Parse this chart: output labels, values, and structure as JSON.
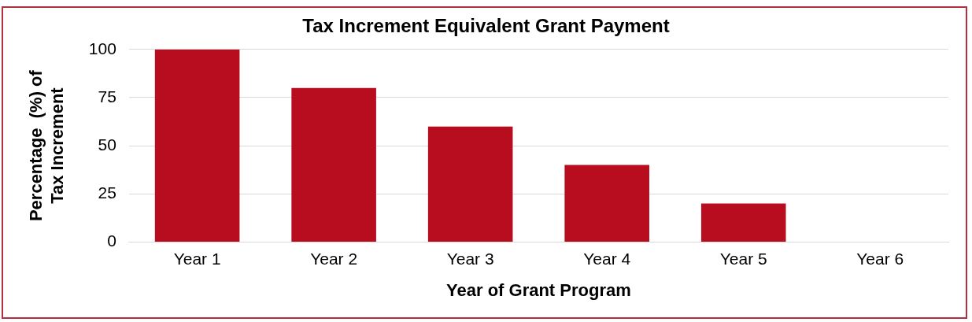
{
  "chart_data": {
    "type": "bar",
    "title": "Tax Increment Equivalent Grant Payment",
    "xlabel": "Year of Grant Program",
    "ylabel": "Percentage  (%) of\nTax Increment",
    "categories": [
      "Year 1",
      "Year 2",
      "Year 3",
      "Year 4",
      "Year 5",
      "Year 6"
    ],
    "values": [
      100,
      80,
      60,
      40,
      20,
      0
    ],
    "color": "#b80c1f",
    "ylim": [
      0,
      100
    ],
    "yticks": [
      0,
      25,
      50,
      75,
      100
    ],
    "grid": "y",
    "legend": false
  }
}
